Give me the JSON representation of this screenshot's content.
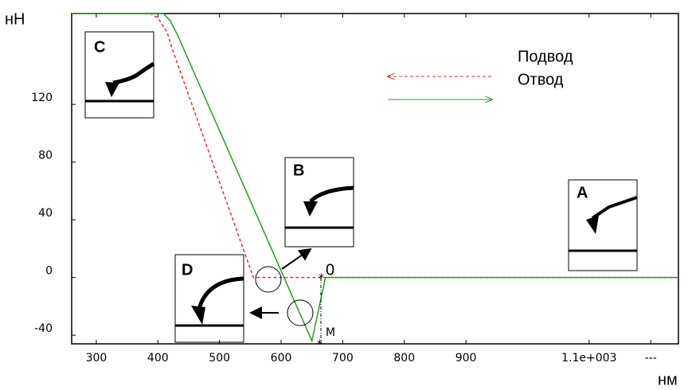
{
  "chart_data": {
    "type": "line",
    "y_label": "нН",
    "x_label": "нм",
    "xlim": [
      260,
      1245
    ],
    "ylim": [
      -46,
      183
    ],
    "xticks": [
      300,
      400,
      500,
      600,
      700,
      800,
      900,
      {
        "value": 1100,
        "label": "1.1e+003"
      },
      {
        "value": 1200,
        "label": "---"
      }
    ],
    "yticks": [
      -40,
      0,
      40,
      80,
      120
    ],
    "series": [
      {
        "name": "Подвод",
        "color": "#e03030",
        "dash": true,
        "x": [
          260,
          388,
          400,
          415,
          422,
          555,
          1245
        ],
        "values": [
          183,
          183,
          180,
          170,
          160,
          0,
          0
        ]
      },
      {
        "name": "Отвод",
        "color": "#20a020",
        "dash": false,
        "x": [
          260,
          409,
          420,
          432,
          650,
          672,
          1245
        ],
        "values": [
          183,
          183,
          178,
          168,
          -44,
          0,
          0
        ]
      }
    ],
    "annotations": [
      "C",
      "B",
      "A",
      "D",
      "0",
      "M"
    ]
  }
}
